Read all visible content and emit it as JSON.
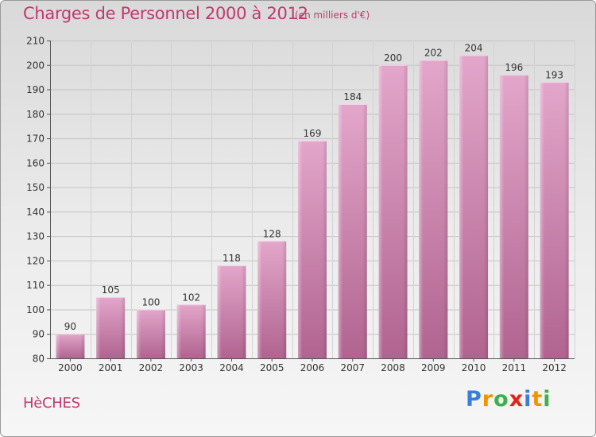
{
  "header": {
    "title": "Charges de Personnel 2000 à 2012",
    "unit": "(en milliers d'€)"
  },
  "footer": {
    "commune": "HèCHES",
    "logo": {
      "letters": [
        "P",
        "r",
        "o",
        "x",
        "i",
        "t",
        "i"
      ],
      "colors": [
        "#3a7fd5",
        "#f29400",
        "#3ab14a",
        "#e2231a",
        "#3a7fd5",
        "#f29400",
        "#3ab14a"
      ]
    }
  },
  "chart_data": {
    "type": "bar",
    "title": "Charges de Personnel 2000 à 2012",
    "subtitle": "(en milliers d'€)",
    "categories": [
      "2000",
      "2001",
      "2002",
      "2003",
      "2004",
      "2005",
      "2006",
      "2007",
      "2008",
      "2009",
      "2010",
      "2011",
      "2012"
    ],
    "values": [
      90,
      105,
      100,
      102,
      118,
      128,
      169,
      184,
      200,
      202,
      204,
      196,
      193
    ],
    "ylim": [
      80,
      210
    ],
    "yticks": [
      80,
      90,
      100,
      110,
      120,
      130,
      140,
      150,
      160,
      170,
      180,
      190,
      200,
      210
    ],
    "grid": true,
    "bar_color": "#d980b2"
  }
}
